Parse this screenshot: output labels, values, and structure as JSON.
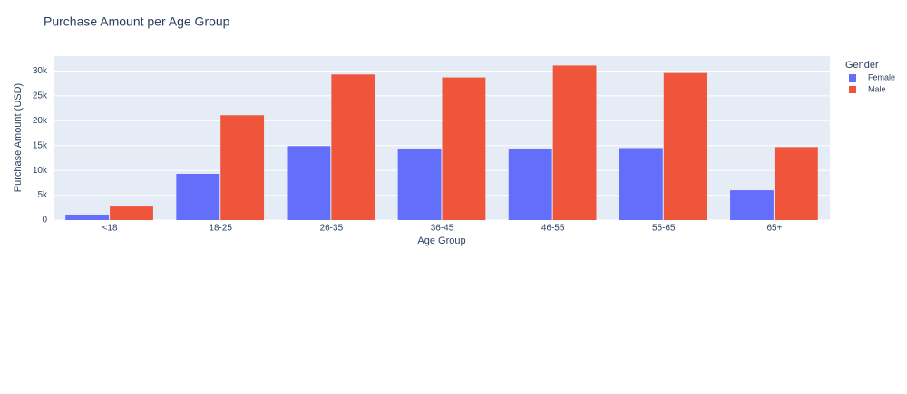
{
  "chart_data": {
    "type": "bar",
    "title": "Purchase Amount per Age Group",
    "x_label": "Age Group",
    "y_label": "Purchase Amount (USD)",
    "categories": [
      "<18",
      "18-25",
      "26-35",
      "36-45",
      "46-55",
      "55-65",
      "65+"
    ],
    "legend_title": "Gender",
    "legend_position": "right",
    "series": [
      {
        "name": "Female",
        "color": "#636efa",
        "values": [
          1100,
          9300,
          14900,
          14400,
          14400,
          14500,
          6000
        ]
      },
      {
        "name": "Male",
        "color": "#ef553b",
        "values": [
          2900,
          21100,
          29300,
          28700,
          31100,
          29600,
          14700
        ]
      }
    ],
    "ylim": [
      0,
      33000
    ],
    "yticks": [
      0,
      {
        "value": 5000,
        "label": "5k"
      },
      {
        "value": 10000,
        "label": "10k"
      },
      {
        "value": 15000,
        "label": "15k"
      },
      {
        "value": 20000,
        "label": "20k"
      },
      {
        "value": 25000,
        "label": "25k"
      },
      {
        "value": 30000,
        "label": "30k"
      }
    ],
    "grid": true
  }
}
